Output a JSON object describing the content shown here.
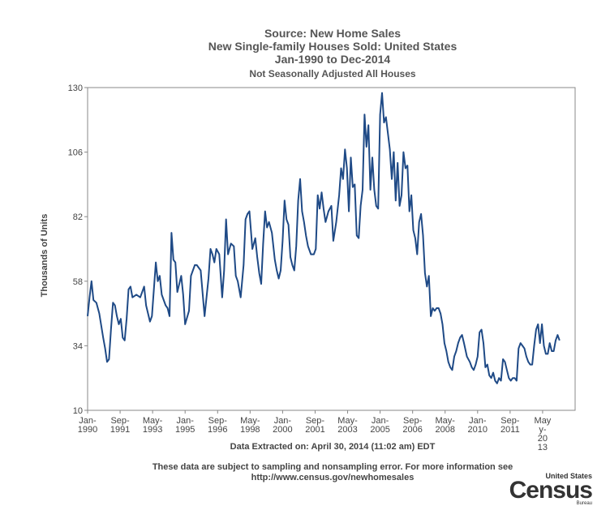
{
  "header": {
    "source": "Source: New Home Sales",
    "title": "New Single-family Houses Sold: United States",
    "range": "Jan-1990 to Dec-2014",
    "subtitle": "Not Seasonally Adjusted All Houses"
  },
  "footer": {
    "extracted": "Data Extracted on: April 30, 2014 (11:02 am) EDT",
    "note_line1": "These data are subject to sampling and nonsampling error. For more information see",
    "note_line2": "http://www.census.gov/newhomesales"
  },
  "logo": {
    "top": "United States",
    "main": "Census",
    "bottom": "Bureau"
  },
  "colors": {
    "line": "#1f4a86",
    "axis": "#888888",
    "text": "#444444"
  },
  "chart_data": {
    "type": "line",
    "ylabel": "Thousands of Units",
    "xlabel": "",
    "ylim": [
      10,
      130
    ],
    "yticks": [
      10,
      34,
      58,
      82,
      106,
      130
    ],
    "xlim": [
      1990.0,
      2015.0
    ],
    "xticks": [
      {
        "x": 1990.0,
        "lines": [
          "Jan-",
          "1990"
        ]
      },
      {
        "x": 1991.667,
        "lines": [
          "Sep-",
          "1991"
        ]
      },
      {
        "x": 1993.333,
        "lines": [
          "May-",
          "1993"
        ]
      },
      {
        "x": 1995.0,
        "lines": [
          "Jan-",
          "1995"
        ]
      },
      {
        "x": 1996.667,
        "lines": [
          "Sep-",
          "1996"
        ]
      },
      {
        "x": 1998.333,
        "lines": [
          "May-",
          "1998"
        ]
      },
      {
        "x": 2000.0,
        "lines": [
          "Jan-",
          "2000"
        ]
      },
      {
        "x": 2001.667,
        "lines": [
          "Sep-",
          "2001"
        ]
      },
      {
        "x": 2003.333,
        "lines": [
          "May-",
          "2003"
        ]
      },
      {
        "x": 2005.0,
        "lines": [
          "Jan-",
          "2005"
        ]
      },
      {
        "x": 2006.667,
        "lines": [
          "Sep-",
          "2006"
        ]
      },
      {
        "x": 2008.333,
        "lines": [
          "May-",
          "2008"
        ]
      },
      {
        "x": 2010.0,
        "lines": [
          "Jan-",
          "2010"
        ]
      },
      {
        "x": 2011.667,
        "lines": [
          "Sep-",
          "2011"
        ]
      },
      {
        "x": 2013.333,
        "lines": [
          "May",
          "y-",
          "20",
          "13"
        ]
      }
    ],
    "series": [
      {
        "x": [
          1990.0,
          1990.1,
          1990.2,
          1990.3,
          1990.45,
          1990.6,
          1990.8,
          1990.9,
          1991.0,
          1991.1,
          1991.2,
          1991.3,
          1991.4,
          1991.5,
          1991.6,
          1991.7,
          1991.8,
          1991.9,
          1992.0,
          1992.1,
          1992.2,
          1992.3,
          1992.5,
          1992.7,
          1992.9,
          1993.0,
          1993.2,
          1993.3,
          1993.4,
          1993.5,
          1993.6,
          1993.7,
          1993.8,
          1994.0,
          1994.1,
          1994.2,
          1994.3,
          1994.4,
          1994.5,
          1994.6,
          1994.8,
          1994.9,
          1995.0,
          1995.2,
          1995.3,
          1995.4,
          1995.5,
          1995.6,
          1995.8,
          1996.0,
          1996.2,
          1996.3,
          1996.4,
          1996.5,
          1996.6,
          1996.75,
          1996.9,
          1997.0,
          1997.1,
          1997.2,
          1997.35,
          1997.5,
          1997.6,
          1997.7,
          1997.85,
          1998.0,
          1998.1,
          1998.2,
          1998.3,
          1998.45,
          1998.6,
          1998.7,
          1998.8,
          1998.9,
          1999.0,
          1999.1,
          1999.2,
          1999.3,
          1999.45,
          1999.6,
          1999.7,
          1999.8,
          1999.9,
          2000.0,
          2000.1,
          2000.2,
          2000.3,
          2000.4,
          2000.5,
          2000.6,
          2000.7,
          2000.8,
          2000.9,
          2001.0,
          2001.1,
          2001.2,
          2001.3,
          2001.45,
          2001.6,
          2001.7,
          2001.8,
          2001.9,
          2002.0,
          2002.1,
          2002.2,
          2002.35,
          2002.5,
          2002.6,
          2002.75,
          2002.9,
          2003.0,
          2003.1,
          2003.2,
          2003.3,
          2003.4,
          2003.5,
          2003.6,
          2003.7,
          2003.8,
          2003.9,
          2004.0,
          2004.1,
          2004.2,
          2004.3,
          2004.4,
          2004.5,
          2004.6,
          2004.7,
          2004.8,
          2004.9,
          2005.0,
          2005.1,
          2005.2,
          2005.3,
          2005.4,
          2005.5,
          2005.6,
          2005.7,
          2005.8,
          2005.9,
          2006.0,
          2006.1,
          2006.2,
          2006.3,
          2006.4,
          2006.5,
          2006.6,
          2006.7,
          2006.8,
          2006.9,
          2007.0,
          2007.1,
          2007.2,
          2007.3,
          2007.4,
          2007.5,
          2007.6,
          2007.7,
          2007.8,
          2007.9,
          2008.0,
          2008.1,
          2008.2,
          2008.3,
          2008.4,
          2008.5,
          2008.6,
          2008.7,
          2008.8,
          2008.9,
          2009.0,
          2009.1,
          2009.2,
          2009.3,
          2009.45,
          2009.6,
          2009.7,
          2009.8,
          2009.9,
          2010.0,
          2010.1,
          2010.2,
          2010.3,
          2010.4,
          2010.5,
          2010.6,
          2010.7,
          2010.8,
          2010.9,
          2011.0,
          2011.1,
          2011.2,
          2011.3,
          2011.4,
          2011.5,
          2011.6,
          2011.7,
          2011.8,
          2011.9,
          2012.0,
          2012.1,
          2012.2,
          2012.3,
          2012.4,
          2012.5,
          2012.6,
          2012.7,
          2012.8,
          2012.9,
          2013.0,
          2013.1,
          2013.2,
          2013.3,
          2013.4,
          2013.5,
          2013.6,
          2013.7,
          2013.8,
          2013.9,
          2014.0,
          2014.1,
          2014.2
        ],
        "y": [
          45,
          52,
          58,
          51,
          50,
          46,
          37,
          33,
          28,
          29,
          40,
          50,
          49,
          45,
          42,
          44,
          37,
          36,
          44,
          55,
          56,
          52,
          53,
          52,
          56,
          49,
          43,
          45,
          55,
          65,
          58,
          60,
          53,
          49,
          48,
          45,
          76,
          66,
          65,
          54,
          60,
          53,
          42,
          47,
          60,
          62,
          64,
          64,
          62,
          45,
          59,
          70,
          68,
          65,
          70,
          68,
          52,
          62,
          81,
          68,
          72,
          71,
          60,
          58,
          52,
          64,
          81,
          83,
          84,
          70,
          74,
          67,
          61,
          57,
          72,
          84,
          78,
          80,
          76,
          66,
          62,
          59,
          62,
          73,
          88,
          81,
          79,
          67,
          64,
          62,
          71,
          88,
          96,
          84,
          80,
          75,
          71,
          68,
          68,
          70,
          90,
          85,
          91,
          85,
          80,
          84,
          86,
          73,
          80,
          90,
          100,
          96,
          107,
          100,
          84,
          104,
          93,
          94,
          75,
          74,
          86,
          92,
          120,
          108,
          116,
          92,
          104,
          92,
          86,
          85,
          120,
          128,
          117,
          119,
          113,
          107,
          96,
          106,
          88,
          102,
          86,
          90,
          106,
          100,
          101,
          84,
          90,
          77,
          74,
          68,
          80,
          83,
          75,
          61,
          56,
          60,
          45,
          48,
          47,
          48,
          48,
          46,
          42,
          35,
          32,
          28,
          26,
          25,
          30,
          32,
          35,
          37,
          38,
          35,
          30,
          28,
          26,
          25,
          27,
          30,
          39,
          40,
          35,
          26,
          27,
          23,
          22,
          24,
          21,
          20,
          22,
          21,
          29,
          28,
          25,
          22,
          21,
          22,
          22,
          21,
          33,
          35,
          34,
          33,
          30,
          28,
          27,
          27,
          34,
          40,
          42,
          35,
          42,
          34,
          31,
          31,
          35,
          32,
          32,
          36,
          38,
          36
        ]
      }
    ]
  }
}
